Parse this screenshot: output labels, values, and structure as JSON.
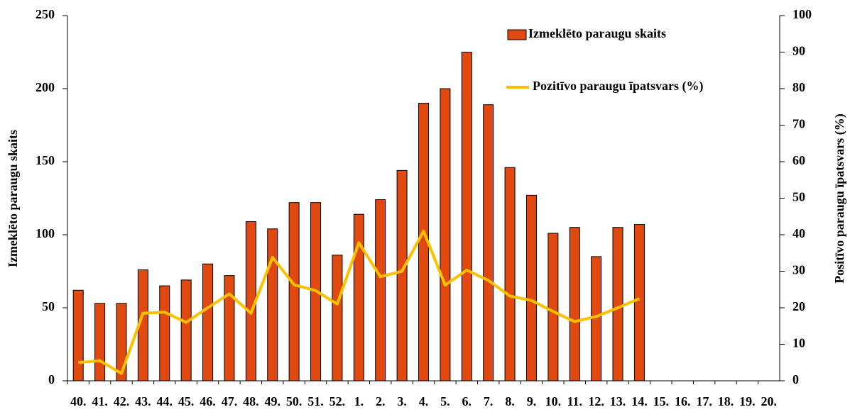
{
  "chart_data": {
    "type": "bar_line",
    "ylabel": "Izmeklēto paraugu skaits",
    "y2label": "Positīvo paraugu īpatsvars (%)",
    "categories": [
      "40.",
      "41.",
      "42.",
      "43.",
      "44.",
      "45.",
      "46.",
      "47.",
      "48.",
      "49.",
      "50.",
      "51.",
      "52.",
      "1.",
      "2.",
      "3.",
      "4.",
      "5.",
      "6.",
      "7.",
      "8.",
      "9.",
      "10.",
      "11.",
      "12.",
      "13.",
      "14.",
      "15.",
      "16.",
      "17.",
      "18.",
      "19.",
      "20."
    ],
    "series": [
      {
        "name": "Izmeklēto paraugu skaits",
        "type": "bar",
        "color": "#e04a10",
        "values": [
          62,
          53,
          53,
          76,
          65,
          69,
          80,
          72,
          109,
          104,
          122,
          122,
          86,
          114,
          124,
          144,
          190,
          200,
          225,
          189,
          146,
          127,
          101,
          105,
          85,
          105,
          107,
          null,
          null,
          null,
          null,
          null,
          null
        ]
      },
      {
        "name": "Pozitīvo paraugu īpatsvars (%)",
        "type": "line",
        "axis": "y2",
        "color": "#ffc000",
        "values": [
          5,
          5.5,
          2,
          18.5,
          18.8,
          16,
          20,
          23.8,
          18.5,
          33.8,
          26.3,
          24.7,
          21,
          37.8,
          28.5,
          30,
          41,
          26.2,
          30.3,
          27.5,
          23.2,
          22,
          19,
          16.2,
          17.6,
          20,
          22.5,
          null,
          null,
          null,
          null,
          null,
          null
        ]
      }
    ],
    "ylim": [
      0,
      250
    ],
    "yticks": [
      0,
      50,
      100,
      150,
      200,
      250
    ],
    "y2lim": [
      0,
      100
    ],
    "y2ticks": [
      0,
      10,
      20,
      30,
      40,
      50,
      60,
      70,
      80,
      90,
      100
    ],
    "legend": "top-right"
  }
}
